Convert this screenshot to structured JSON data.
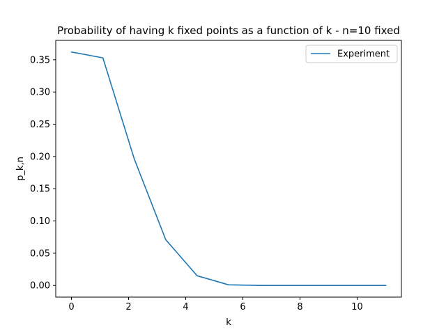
{
  "chart_data": {
    "type": "line",
    "title": "Probability of having k fixed points as a function of k - n=10 fixed",
    "xlabel": "k",
    "ylabel": "p_k,n",
    "xlim": [
      -0.55,
      11.55
    ],
    "ylim": [
      -0.0181,
      0.3801
    ],
    "x_ticks": [
      0,
      2,
      4,
      6,
      8,
      10
    ],
    "x_tick_labels": [
      "0",
      "2",
      "4",
      "6",
      "8",
      "10"
    ],
    "y_ticks": [
      0.0,
      0.05,
      0.1,
      0.15,
      0.2,
      0.25,
      0.3,
      0.35
    ],
    "y_tick_labels": [
      "0.00",
      "0.05",
      "0.10",
      "0.15",
      "0.20",
      "0.25",
      "0.30",
      "0.35"
    ],
    "grid": false,
    "legend_position": "upper right",
    "series": [
      {
        "name": "Experiment",
        "color": "#1f77b4",
        "x": [
          0,
          1.1,
          2.2,
          3.3,
          4.4,
          5.5,
          6.6,
          7.7,
          8.8,
          9.9,
          11
        ],
        "y": [
          0.362,
          0.353,
          0.196,
          0.071,
          0.015,
          0.001,
          0.0,
          0.0,
          0.0,
          0.0,
          0.0
        ]
      }
    ]
  }
}
